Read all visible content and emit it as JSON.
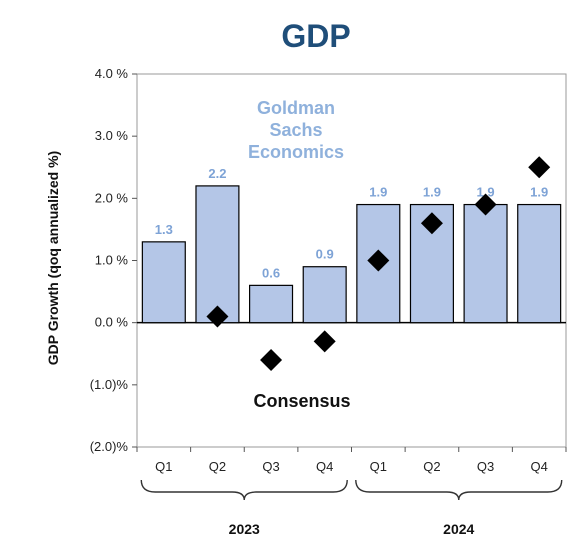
{
  "chart_data": {
    "type": "bar",
    "title": "GDP",
    "ylabel": "GDP Growth (qoq annualized %)",
    "xlabel": "",
    "ylim": [
      -2.0,
      4.0
    ],
    "y_ticks": [
      4.0,
      3.0,
      2.0,
      1.0,
      0.0,
      -1.0,
      -2.0
    ],
    "y_tick_labels": [
      "4.0 %",
      "3.0 %",
      "2.0 %",
      "1.0 %",
      "0.0 %",
      "(1.0)%",
      "(2.0)%"
    ],
    "categories": [
      "Q1",
      "Q2",
      "Q3",
      "Q4",
      "Q1",
      "Q2",
      "Q3",
      "Q4"
    ],
    "groups": [
      {
        "label": "2023",
        "from": 0,
        "to": 3
      },
      {
        "label": "2024",
        "from": 4,
        "to": 7
      }
    ],
    "series": [
      {
        "name": "Goldman Sachs Economics",
        "kind": "bar",
        "values": [
          1.3,
          2.2,
          0.6,
          0.9,
          1.9,
          1.9,
          1.9,
          1.9
        ],
        "labels": [
          "1.3",
          "2.2",
          "0.6",
          "0.9",
          "1.9",
          "1.9",
          "1.9",
          "1.9"
        ],
        "color": "#b4c6e7",
        "label_color": "#7ea3d6"
      },
      {
        "name": "Consensus",
        "kind": "marker",
        "marker": "diamond",
        "values": [
          null,
          0.1,
          -0.6,
          -0.3,
          1.0,
          1.6,
          1.9,
          2.5
        ],
        "color": "#000000"
      }
    ],
    "annotations": [
      "Goldman",
      "Sachs",
      "Economics",
      "Consensus"
    ],
    "grid": false
  }
}
